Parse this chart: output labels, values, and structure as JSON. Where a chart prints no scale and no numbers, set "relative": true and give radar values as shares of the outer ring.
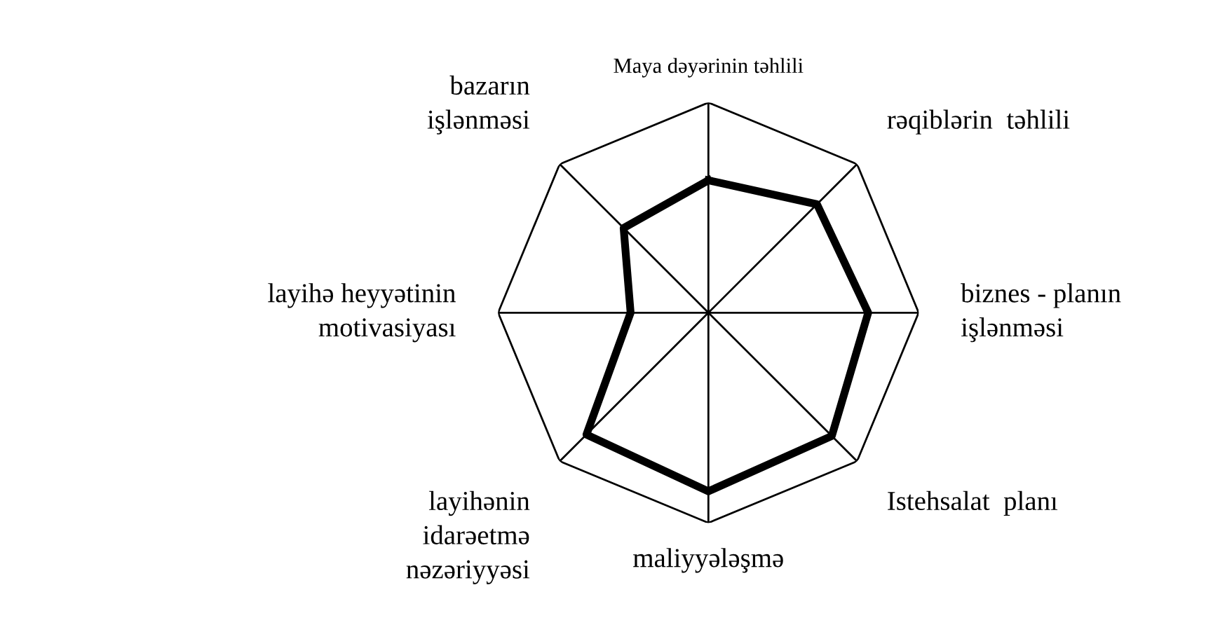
{
  "chart_data": {
    "type": "radar",
    "relative": true,
    "categories": [
      "Maya dəyərinin təhlili",
      "rəqiblərin  təhlili",
      "biznes - planın\nişlənməsi",
      "Istehsalat  planı",
      "maliyyələşmə",
      "layihənin\nidarəetmə\nnəzəriyyəsi",
      "layihə heyyətinin\nmotivasiyası",
      "bazarın\nişlənməsi"
    ],
    "series": [
      {
        "color": "#000000",
        "values": [
          0.63,
          0.73,
          0.76,
          0.83,
          0.85,
          0.82,
          0.37,
          0.57
        ]
      }
    ],
    "grid": true,
    "marker": "none",
    "line_style": "solid"
  }
}
